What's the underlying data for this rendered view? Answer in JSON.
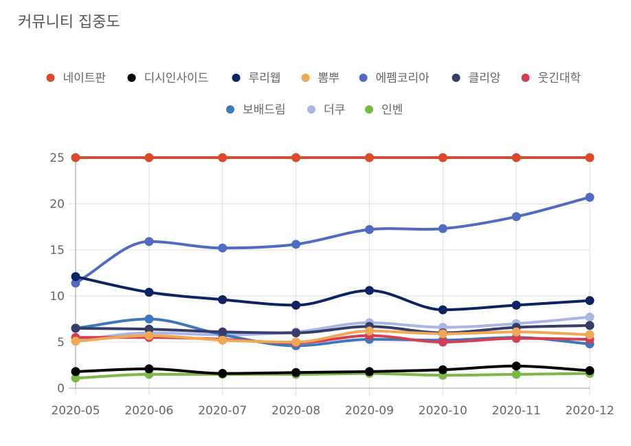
{
  "chart_data": {
    "type": "line",
    "title": "커뮤니티 집중도",
    "x": [
      "2020-05",
      "2020-06",
      "2020-07",
      "2020-08",
      "2020-09",
      "2020-10",
      "2020-11",
      "2020-12"
    ],
    "ylim": [
      0,
      25
    ],
    "yticks": [
      0,
      5,
      10,
      15,
      20,
      25
    ],
    "grid": true,
    "legend_position": "top",
    "series": [
      {
        "name": "네이트판",
        "color": "#dc4a2c",
        "values": [
          25,
          25,
          25,
          25,
          25,
          25,
          25,
          25
        ]
      },
      {
        "name": "디시인사이드",
        "color": "#000000",
        "values": [
          1.8,
          2.1,
          1.6,
          1.7,
          1.8,
          2.0,
          2.4,
          1.9
        ]
      },
      {
        "name": "루리웹",
        "color": "#0d2364",
        "values": [
          12.1,
          10.4,
          9.6,
          9.0,
          10.6,
          8.5,
          9.0,
          9.5
        ]
      },
      {
        "name": "뽐뿌",
        "color": "#f0a854",
        "values": [
          5.1,
          5.7,
          5.2,
          5.0,
          6.2,
          5.9,
          6.1,
          5.8
        ]
      },
      {
        "name": "에펨코리아",
        "color": "#4f6bc2",
        "values": [
          11.4,
          15.9,
          15.2,
          15.6,
          17.2,
          17.3,
          18.6,
          20.7
        ]
      },
      {
        "name": "클리앙",
        "color": "#373d6b",
        "values": [
          6.5,
          6.4,
          6.1,
          6.0,
          6.7,
          6.0,
          6.6,
          6.8
        ]
      },
      {
        "name": "웃긴대학",
        "color": "#d33f52",
        "values": [
          5.5,
          5.5,
          5.3,
          4.9,
          5.7,
          5.0,
          5.4,
          5.3
        ]
      },
      {
        "name": "보배드림",
        "color": "#3d78bd",
        "values": [
          6.5,
          7.5,
          5.8,
          4.6,
          5.3,
          5.2,
          5.5,
          4.8
        ]
      },
      {
        "name": "더쿠",
        "color": "#a9b6e6",
        "values": [
          5.2,
          6.0,
          5.8,
          6.1,
          7.1,
          6.6,
          7.0,
          7.7
        ]
      },
      {
        "name": "인벤",
        "color": "#7bb947",
        "values": [
          1.1,
          1.5,
          1.5,
          1.5,
          1.6,
          1.4,
          1.5,
          1.6
        ]
      }
    ]
  }
}
